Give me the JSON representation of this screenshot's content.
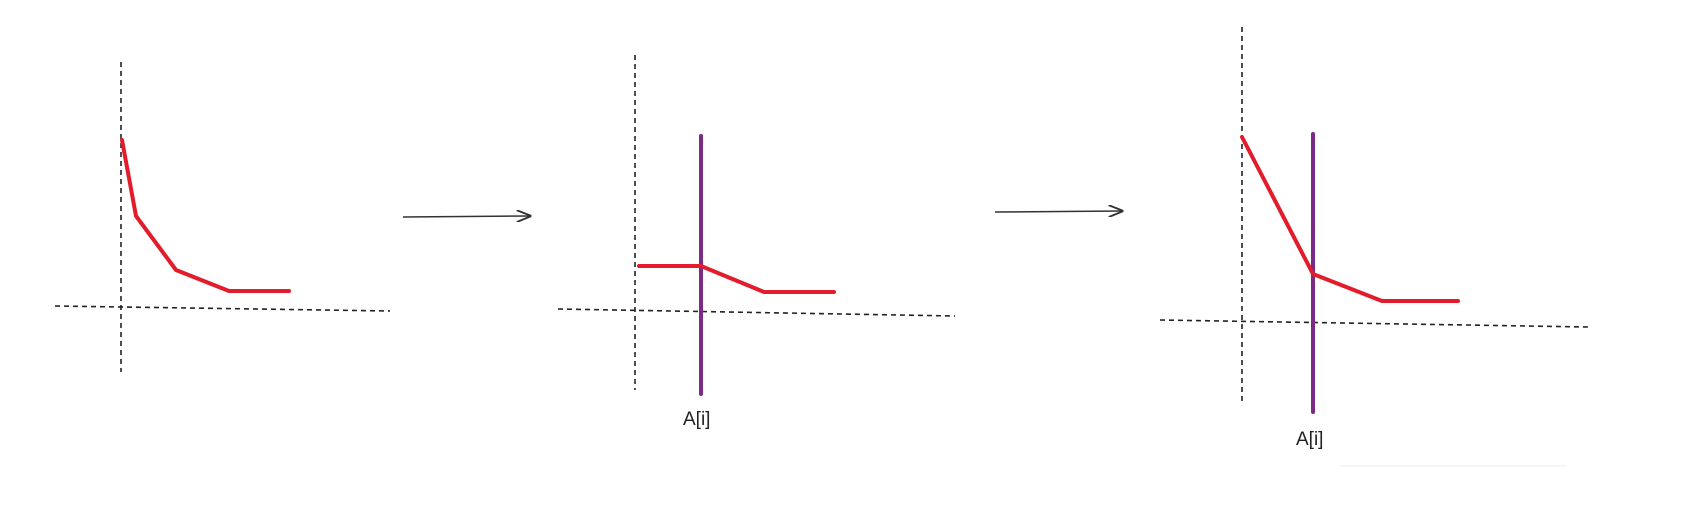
{
  "diagram": {
    "panels": [
      {
        "id": "before",
        "label": ""
      },
      {
        "id": "middle",
        "label": "A[i]"
      },
      {
        "id": "after",
        "label": "A[i]"
      }
    ]
  }
}
